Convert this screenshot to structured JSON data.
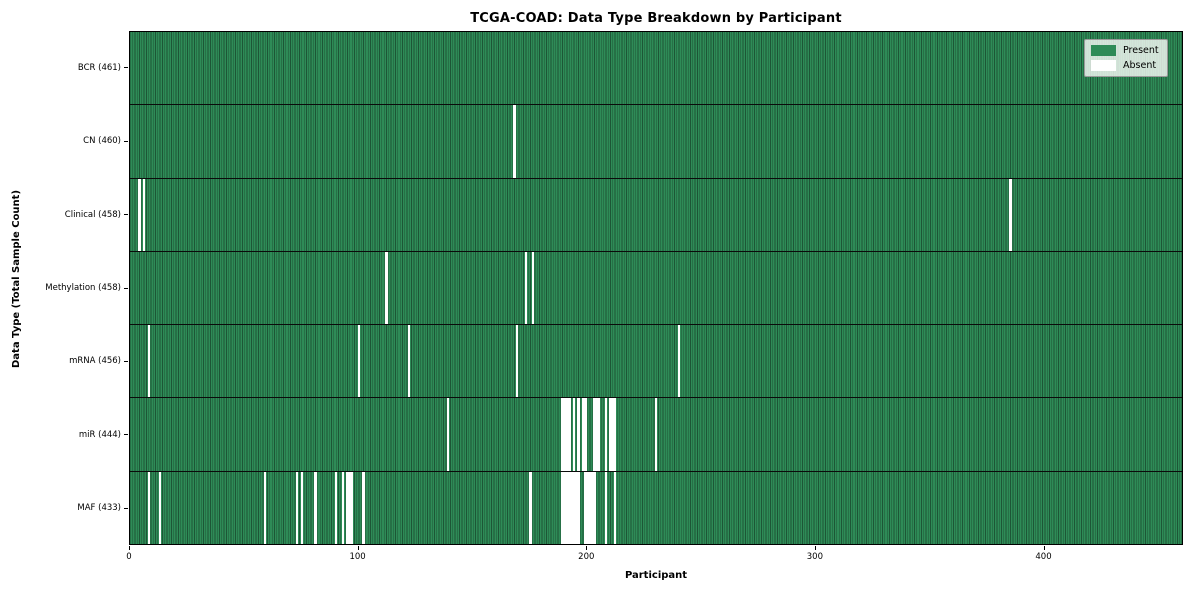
{
  "chart_data": {
    "type": "heatmap",
    "title": "TCGA-COAD: Data Type Breakdown by Participant",
    "xlabel": "Participant",
    "ylabel": "Data Type (Total Sample Count)",
    "n_participants": 461,
    "x_axis": {
      "ticks": [
        0,
        100,
        200,
        300,
        400
      ],
      "range": [
        0,
        461
      ]
    },
    "legend": {
      "position": "upper-right",
      "entries": [
        {
          "label": "Present",
          "color": "#2e8b57"
        },
        {
          "label": "Absent",
          "color": "#ffffff"
        }
      ]
    },
    "colors": {
      "present": "#2e8b57",
      "absent": "#ffffff",
      "cell_border": "#1d5c39",
      "row_separator": "#0b0b0b"
    },
    "rows": [
      {
        "label": "BCR (461)",
        "data_type": "BCR",
        "present_count": 461,
        "absent_participants": []
      },
      {
        "label": "CN (460)",
        "data_type": "CN",
        "present_count": 460,
        "absent_participants": [
          168
        ]
      },
      {
        "label": "Clinical (458)",
        "data_type": "Clinical",
        "present_count": 458,
        "absent_participants": [
          4,
          6,
          385
        ]
      },
      {
        "label": "Methylation (458)",
        "data_type": "Methylation",
        "present_count": 458,
        "absent_participants": [
          112,
          173,
          176
        ]
      },
      {
        "label": "mRNA (456)",
        "data_type": "mRNA",
        "present_count": 456,
        "absent_participants": [
          8,
          100,
          122,
          169,
          240
        ]
      },
      {
        "label": "miR (444)",
        "data_type": "miR",
        "present_count": 444,
        "absent_participants": [
          139,
          189,
          190,
          191,
          192,
          194,
          196,
          198,
          199,
          203,
          204,
          205,
          208,
          210,
          211,
          212,
          230
        ]
      },
      {
        "label": "MAF (433)",
        "data_type": "MAF",
        "present_count": 433,
        "absent_participants": [
          8,
          13,
          59,
          73,
          75,
          81,
          90,
          93,
          95,
          96,
          97,
          102,
          175,
          189,
          190,
          191,
          192,
          193,
          194,
          195,
          196,
          199,
          200,
          201,
          202,
          203,
          208,
          212
        ]
      }
    ]
  }
}
